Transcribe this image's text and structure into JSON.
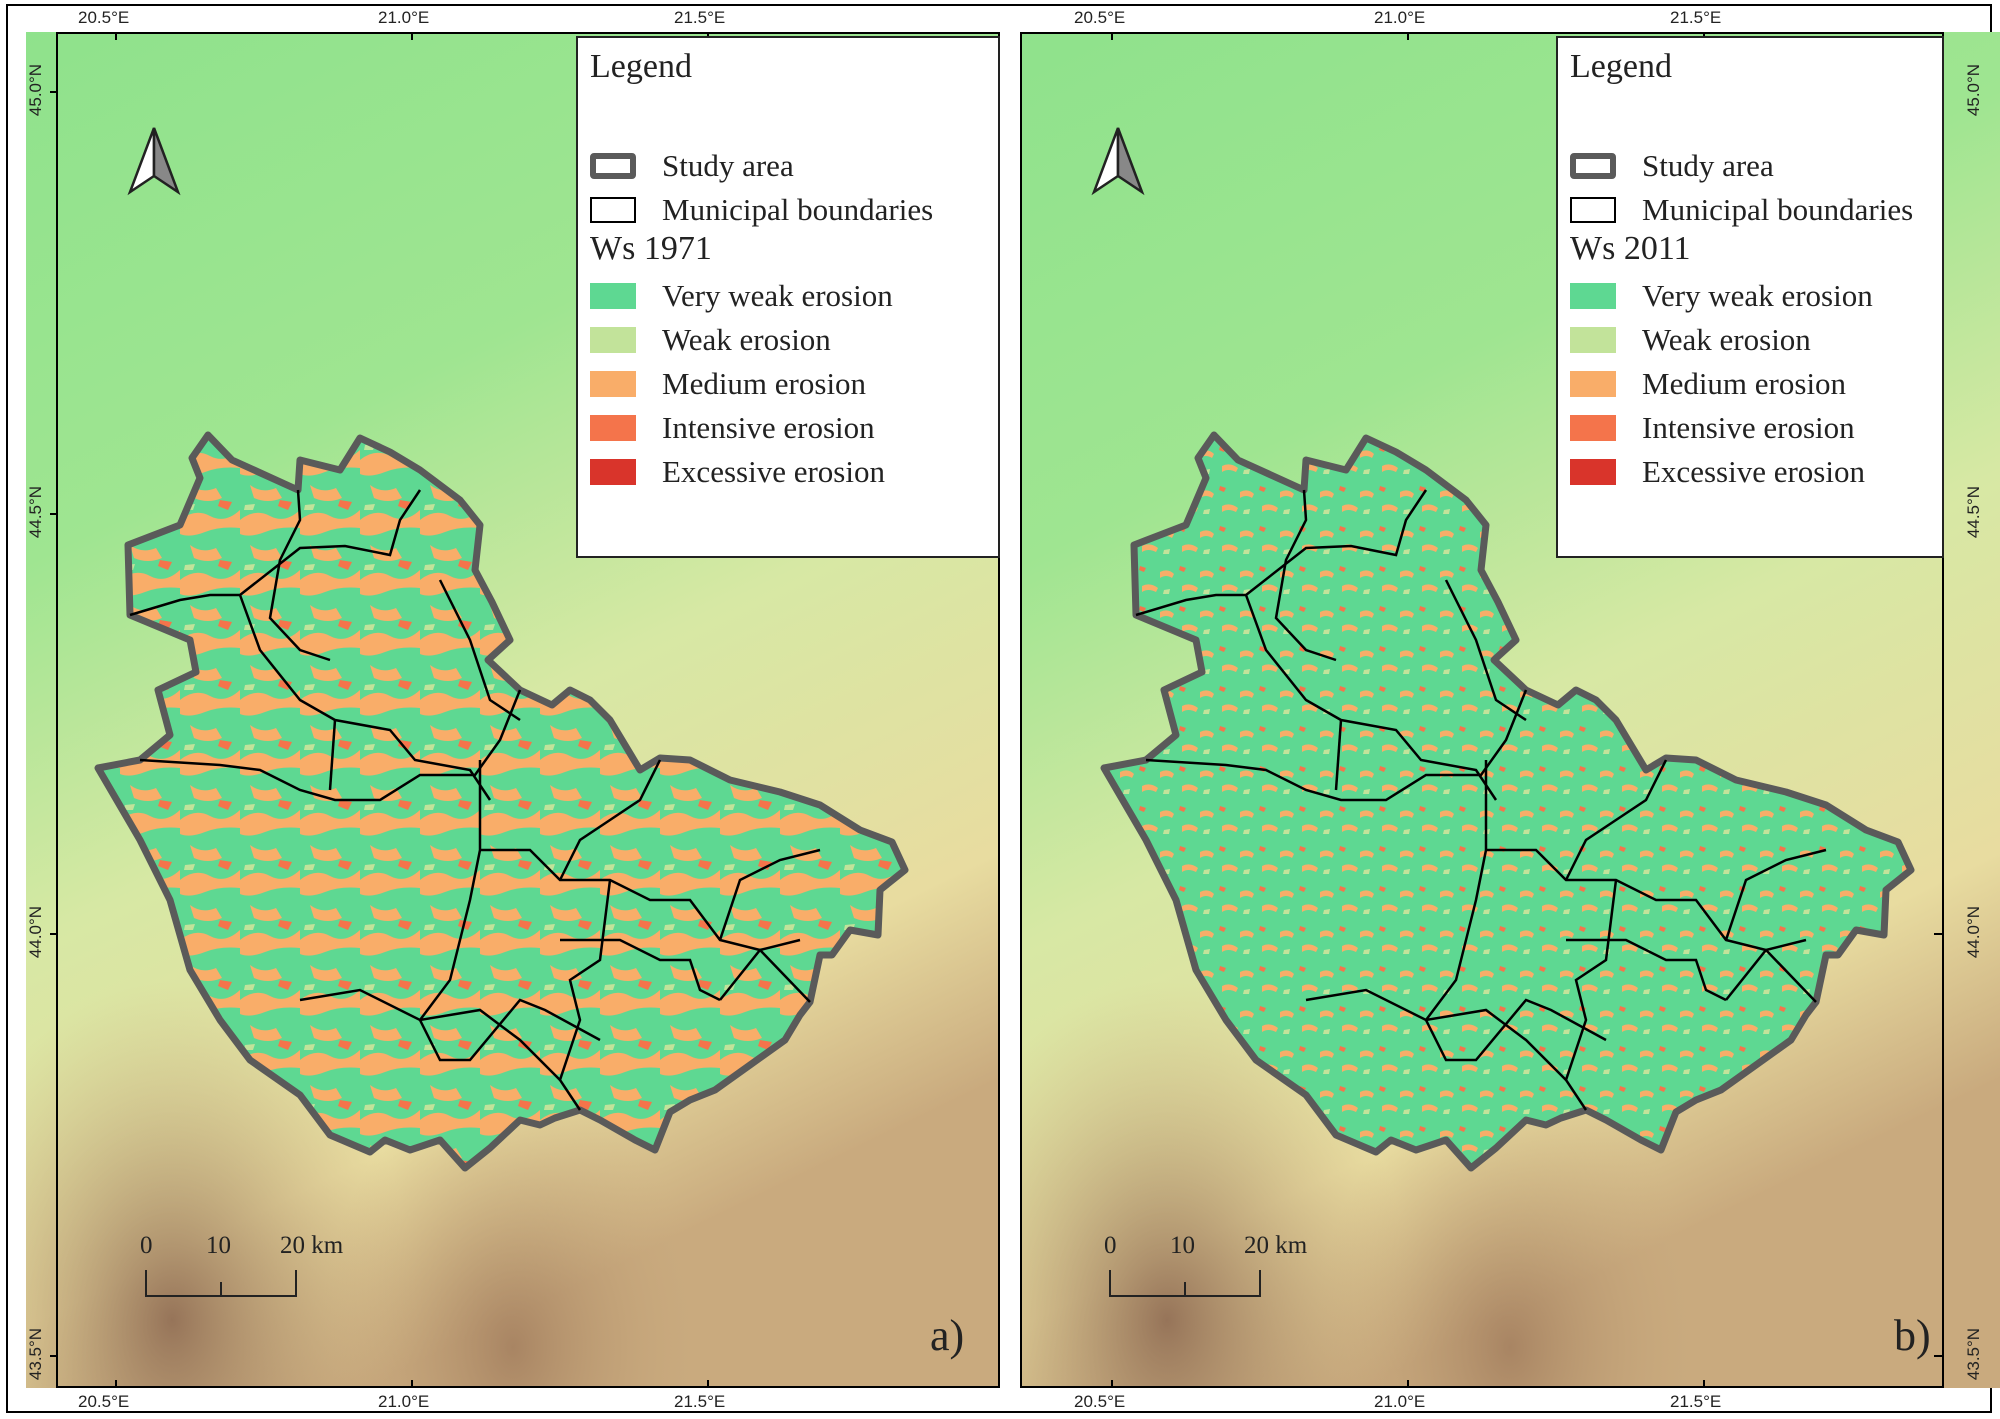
{
  "figure": {
    "panels": [
      {
        "id": "a",
        "letter": "a)",
        "lon_top": [
          "20.5°E",
          "21.0°E",
          "21.5°E"
        ],
        "lon_bottom": [
          "20.5°E",
          "21.0°E",
          "21.5°E"
        ],
        "lat_left": [
          "45.0°N",
          "44.5°N",
          "44.0°N",
          "43.5°N"
        ],
        "lat_right": [],
        "legend": {
          "title": "Legend",
          "study_area": "Study area",
          "municipal": "Municipal boundaries",
          "heading": "Ws 1971",
          "classes": [
            {
              "label": "Very weak erosion",
              "color": "#5ed892"
            },
            {
              "label": "Weak erosion",
              "color": "#c2e39a"
            },
            {
              "label": "Medium erosion",
              "color": "#f9ad69"
            },
            {
              "label": "Intensive erosion",
              "color": "#f4744b"
            },
            {
              "label": "Excessive erosion",
              "color": "#d9342b"
            }
          ]
        },
        "scale": {
          "labels": [
            "0",
            "10",
            "20 km"
          ]
        }
      },
      {
        "id": "b",
        "letter": "b)",
        "lon_top": [
          "20.5°E",
          "21.0°E",
          "21.5°E"
        ],
        "lon_bottom": [
          "20.5°E",
          "21.0°E",
          "21.5°E"
        ],
        "lat_left": [],
        "lat_right": [
          "45.0°N",
          "44.5°N",
          "44.0°N",
          "43.5°N"
        ],
        "legend": {
          "title": "Legend",
          "study_area": "Study area",
          "municipal": "Municipal boundaries",
          "heading": "Ws 2011",
          "classes": [
            {
              "label": "Very weak erosion",
              "color": "#5ed892"
            },
            {
              "label": "Weak erosion",
              "color": "#c2e39a"
            },
            {
              "label": "Medium erosion",
              "color": "#f9ad69"
            },
            {
              "label": "Intensive erosion",
              "color": "#f4744b"
            },
            {
              "label": "Excessive erosion",
              "color": "#d9342b"
            }
          ]
        },
        "scale": {
          "labels": [
            "0",
            "10",
            "20 km"
          ]
        }
      }
    ],
    "colors": {
      "study_area_outline": "#5a5a5a",
      "municipal_outline": "#000000",
      "dem_low": "#8fe38f",
      "dem_mid": "#e6e8a8",
      "dem_high": "#9a7a62"
    }
  }
}
